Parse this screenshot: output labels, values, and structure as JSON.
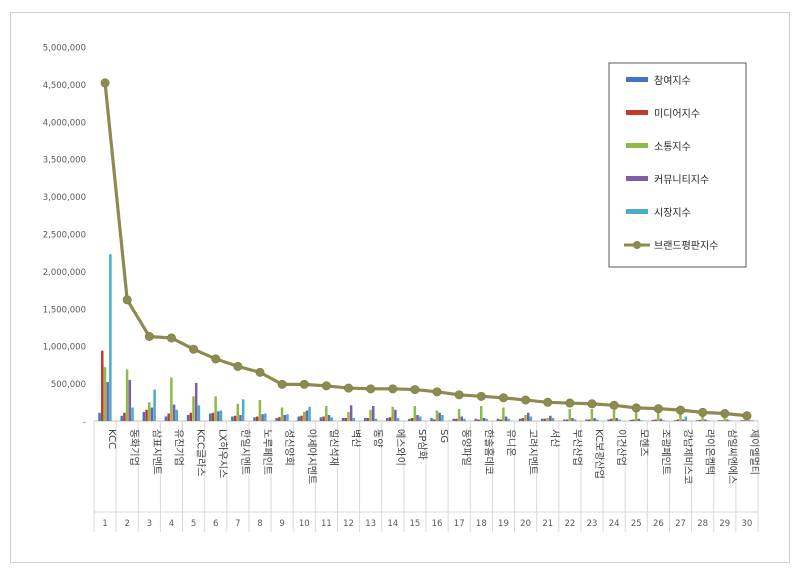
{
  "chart_data": {
    "type": "bar",
    "ylim": [
      0,
      5000000
    ],
    "y_ticks": [
      "-",
      "500,000",
      "1,000,000",
      "1,500,000",
      "2,000,000",
      "2,500,000",
      "3,000,000",
      "3,500,000",
      "4,000,000",
      "4,500,000",
      "5,000,000"
    ],
    "y_tick_values": [
      0,
      500000,
      1000000,
      1500000,
      2000000,
      2500000,
      3000000,
      3500000,
      4000000,
      4500000,
      5000000
    ],
    "categories": [
      "KCC",
      "동화기업",
      "삼표시멘트",
      "유진기업",
      "KCC글라스",
      "LX하우시스",
      "한일시멘트",
      "노루페인트",
      "성신양회",
      "아세아시멘트",
      "일신석재",
      "벽산",
      "동양",
      "에스와이",
      "SP삼화",
      "SG",
      "동양파일",
      "한솔홈데코",
      "유니온",
      "고려시멘트",
      "서산",
      "부산산업",
      "KC보광산업",
      "이건산업",
      "모헨즈",
      "조광페인트",
      "강남제비스코",
      "라이온켐텍",
      "삼일씨엔에스",
      "제이엘멀티"
    ],
    "ranks": [
      "1",
      "2",
      "3",
      "4",
      "5",
      "6",
      "7",
      "8",
      "9",
      "10",
      "11",
      "12",
      "13",
      "14",
      "15",
      "16",
      "17",
      "18",
      "19",
      "20",
      "21",
      "22",
      "23",
      "24",
      "25",
      "26",
      "27",
      "28",
      "29",
      "30"
    ],
    "series": [
      {
        "name": "참여지수",
        "color": "#4472c4",
        "values": [
          110000,
          70000,
          120000,
          60000,
          80000,
          100000,
          60000,
          50000,
          40000,
          60000,
          50000,
          40000,
          40000,
          40000,
          30000,
          40000,
          30000,
          30000,
          30000,
          30000,
          30000,
          20000,
          20000,
          20000,
          15000,
          15000,
          10000,
          10000,
          10000,
          10000
        ]
      },
      {
        "name": "미디어지수",
        "color": "#c0392b",
        "values": [
          940000,
          110000,
          150000,
          100000,
          110000,
          110000,
          70000,
          60000,
          50000,
          70000,
          60000,
          40000,
          40000,
          50000,
          40000,
          20000,
          30000,
          20000,
          20000,
          40000,
          30000,
          20000,
          20000,
          30000,
          20000,
          20000,
          20000,
          15000,
          10000,
          10000
        ]
      },
      {
        "name": "소통지수",
        "color": "#8dbb4a",
        "values": [
          720000,
          690000,
          250000,
          580000,
          330000,
          330000,
          230000,
          280000,
          180000,
          120000,
          200000,
          120000,
          150000,
          190000,
          200000,
          140000,
          160000,
          200000,
          180000,
          80000,
          40000,
          160000,
          160000,
          150000,
          140000,
          140000,
          130000,
          80000,
          90000,
          40000
        ]
      },
      {
        "name": "커뮤니티지수",
        "color": "#7e5ca8",
        "values": [
          520000,
          550000,
          180000,
          220000,
          510000,
          130000,
          80000,
          90000,
          80000,
          140000,
          80000,
          210000,
          200000,
          150000,
          80000,
          110000,
          60000,
          40000,
          60000,
          110000,
          70000,
          40000,
          40000,
          40000,
          30000,
          30000,
          20000,
          20000,
          20000,
          10000
        ]
      },
      {
        "name": "시장지수",
        "color": "#4bacc6",
        "values": [
          2230000,
          180000,
          420000,
          150000,
          210000,
          140000,
          290000,
          100000,
          90000,
          190000,
          50000,
          40000,
          30000,
          40000,
          60000,
          80000,
          30000,
          30000,
          30000,
          60000,
          40000,
          20000,
          20000,
          20000,
          10000,
          10000,
          60000,
          10000,
          10000,
          10000
        ]
      },
      {
        "name": "브랜드평판지수",
        "color": "#8c8c50",
        "values": [
          4520000,
          1620000,
          1130000,
          1110000,
          960000,
          830000,
          730000,
          650000,
          490000,
          490000,
          470000,
          440000,
          430000,
          430000,
          420000,
          390000,
          350000,
          330000,
          310000,
          280000,
          250000,
          240000,
          230000,
          210000,
          175000,
          165000,
          145000,
          115000,
          100000,
          70000
        ]
      }
    ],
    "legend_position": "top-right",
    "grid": false
  }
}
